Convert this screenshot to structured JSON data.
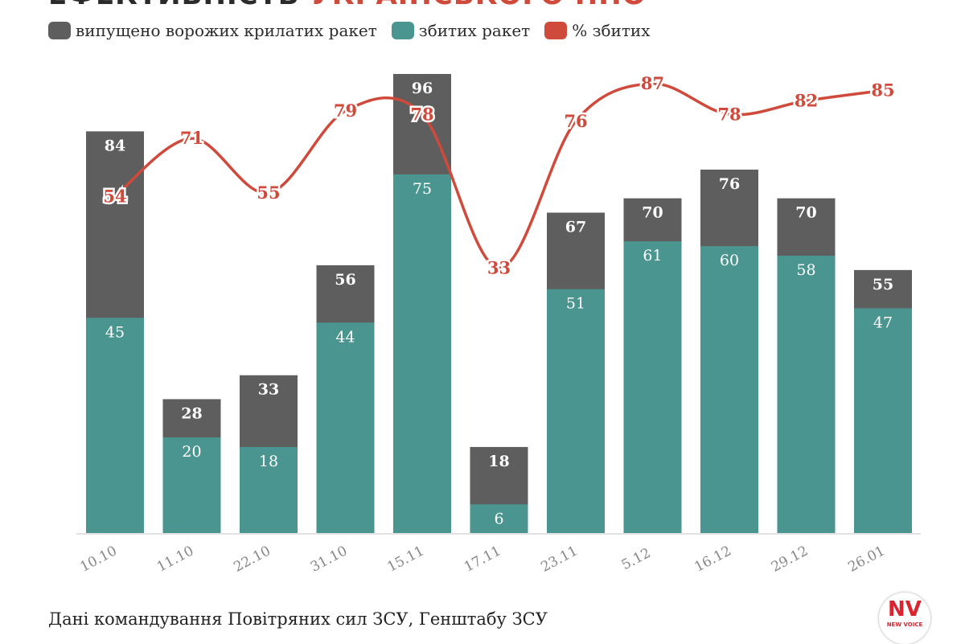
{
  "header": {
    "title_prefix": "ЕФЕКТИВНІСТЬ",
    "title_accent": "УКРАЇНСЬКОГО ППО"
  },
  "legend": [
    {
      "label": "випущено ворожих крилатих ракет",
      "color": "#5e5e5e"
    },
    {
      "label": "збитих ракет",
      "color": "#4a9590"
    },
    {
      "label": "% збитих",
      "color": "#d04a3c"
    }
  ],
  "chart_data": {
    "type": "bar",
    "title": "ЕФЕКТИВНІСТЬ УКРАЇНСЬКОГО ППО",
    "categories": [
      "10.10",
      "11.10",
      "22.10",
      "31.10",
      "15.11",
      "17.11",
      "23.11",
      "5.12",
      "16.12",
      "29.12",
      "26.01"
    ],
    "series": [
      {
        "name": "випущено ворожих крилатих ракет",
        "kind": "bar",
        "color": "#5e5e5e",
        "values": [
          84,
          28,
          33,
          56,
          96,
          18,
          67,
          70,
          76,
          70,
          55
        ]
      },
      {
        "name": "збитих ракет",
        "kind": "bar",
        "color": "#4a9590",
        "values": [
          45,
          20,
          18,
          44,
          75,
          6,
          51,
          61,
          60,
          58,
          47
        ]
      },
      {
        "name": "% збитих",
        "kind": "line",
        "color": "#d04a3c",
        "values": [
          54,
          71,
          55,
          79,
          78,
          33,
          76,
          87,
          78,
          82,
          85
        ]
      }
    ],
    "ylim": [
      0,
      96
    ],
    "xlabel": "",
    "ylabel": "",
    "grid": false,
    "legend_position": "top-left"
  },
  "footer": {
    "source": "Дані командування Повітряних сил ЗСУ, Генштабу ЗСУ",
    "logo_text": "NV",
    "logo_sub": "NEW VOICE"
  }
}
